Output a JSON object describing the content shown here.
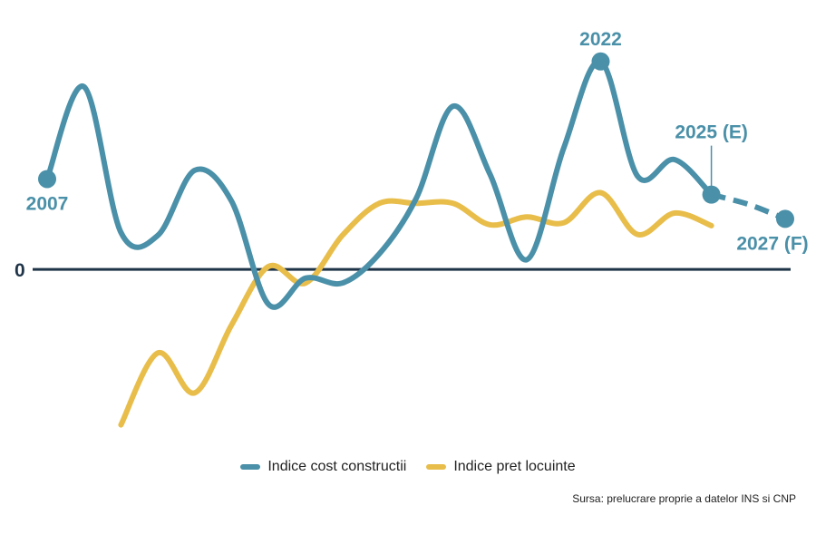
{
  "chart_data": {
    "type": "line",
    "title": "",
    "xlabel": "",
    "ylabel": "",
    "x": [
      2007,
      2008,
      2009,
      2010,
      2011,
      2012,
      2013,
      2014,
      2015,
      2016,
      2017,
      2018,
      2019,
      2020,
      2021,
      2022,
      2023,
      2024,
      2025,
      2026,
      2027
    ],
    "ylim": [
      -165,
      225
    ],
    "zero_label": "0",
    "series": [
      {
        "name": "Indice cost constructii",
        "color": "#4a90a8",
        "x": [
          2007,
          2008,
          2009,
          2010,
          2011,
          2012,
          2013,
          2014,
          2015,
          2016,
          2017,
          2018,
          2019,
          2020,
          2021,
          2022,
          2023,
          2024,
          2025
        ],
        "values": [
          93,
          188,
          38,
          35,
          102,
          70,
          -36,
          -9,
          -14,
          16,
          73,
          168,
          98,
          10,
          125,
          214,
          96,
          113,
          77
        ],
        "forecast": {
          "x": [
            2025,
            2026,
            2027
          ],
          "values": [
            77,
            67,
            52
          ]
        }
      },
      {
        "name": "Indice pret locuinte",
        "color": "#e8bd4a",
        "x": [
          2009,
          2010,
          2011,
          2012,
          2013,
          2014,
          2015,
          2016,
          2017,
          2018,
          2019,
          2020,
          2021,
          2022,
          2023,
          2024,
          2025
        ],
        "values": [
          -160,
          -86,
          -127,
          -57,
          3,
          -14,
          35,
          68,
          68,
          68,
          46,
          54,
          48,
          79,
          36,
          58,
          45
        ]
      }
    ],
    "annotations": [
      {
        "text": "2007",
        "x": 2007,
        "y": 93,
        "position": "below"
      },
      {
        "text": "2022",
        "x": 2022,
        "y": 214,
        "position": "above"
      },
      {
        "text": "2025 (E)",
        "x": 2025,
        "y": 77,
        "position": "above"
      },
      {
        "text": "2027 (F)",
        "x": 2027,
        "y": 52,
        "position": "below"
      }
    ],
    "legend": {
      "position": "bottom",
      "items": [
        "Indice cost constructii",
        "Indice pret locuinte"
      ]
    },
    "source": "Sursa: prelucrare proprie a datelor INS si CNP"
  }
}
